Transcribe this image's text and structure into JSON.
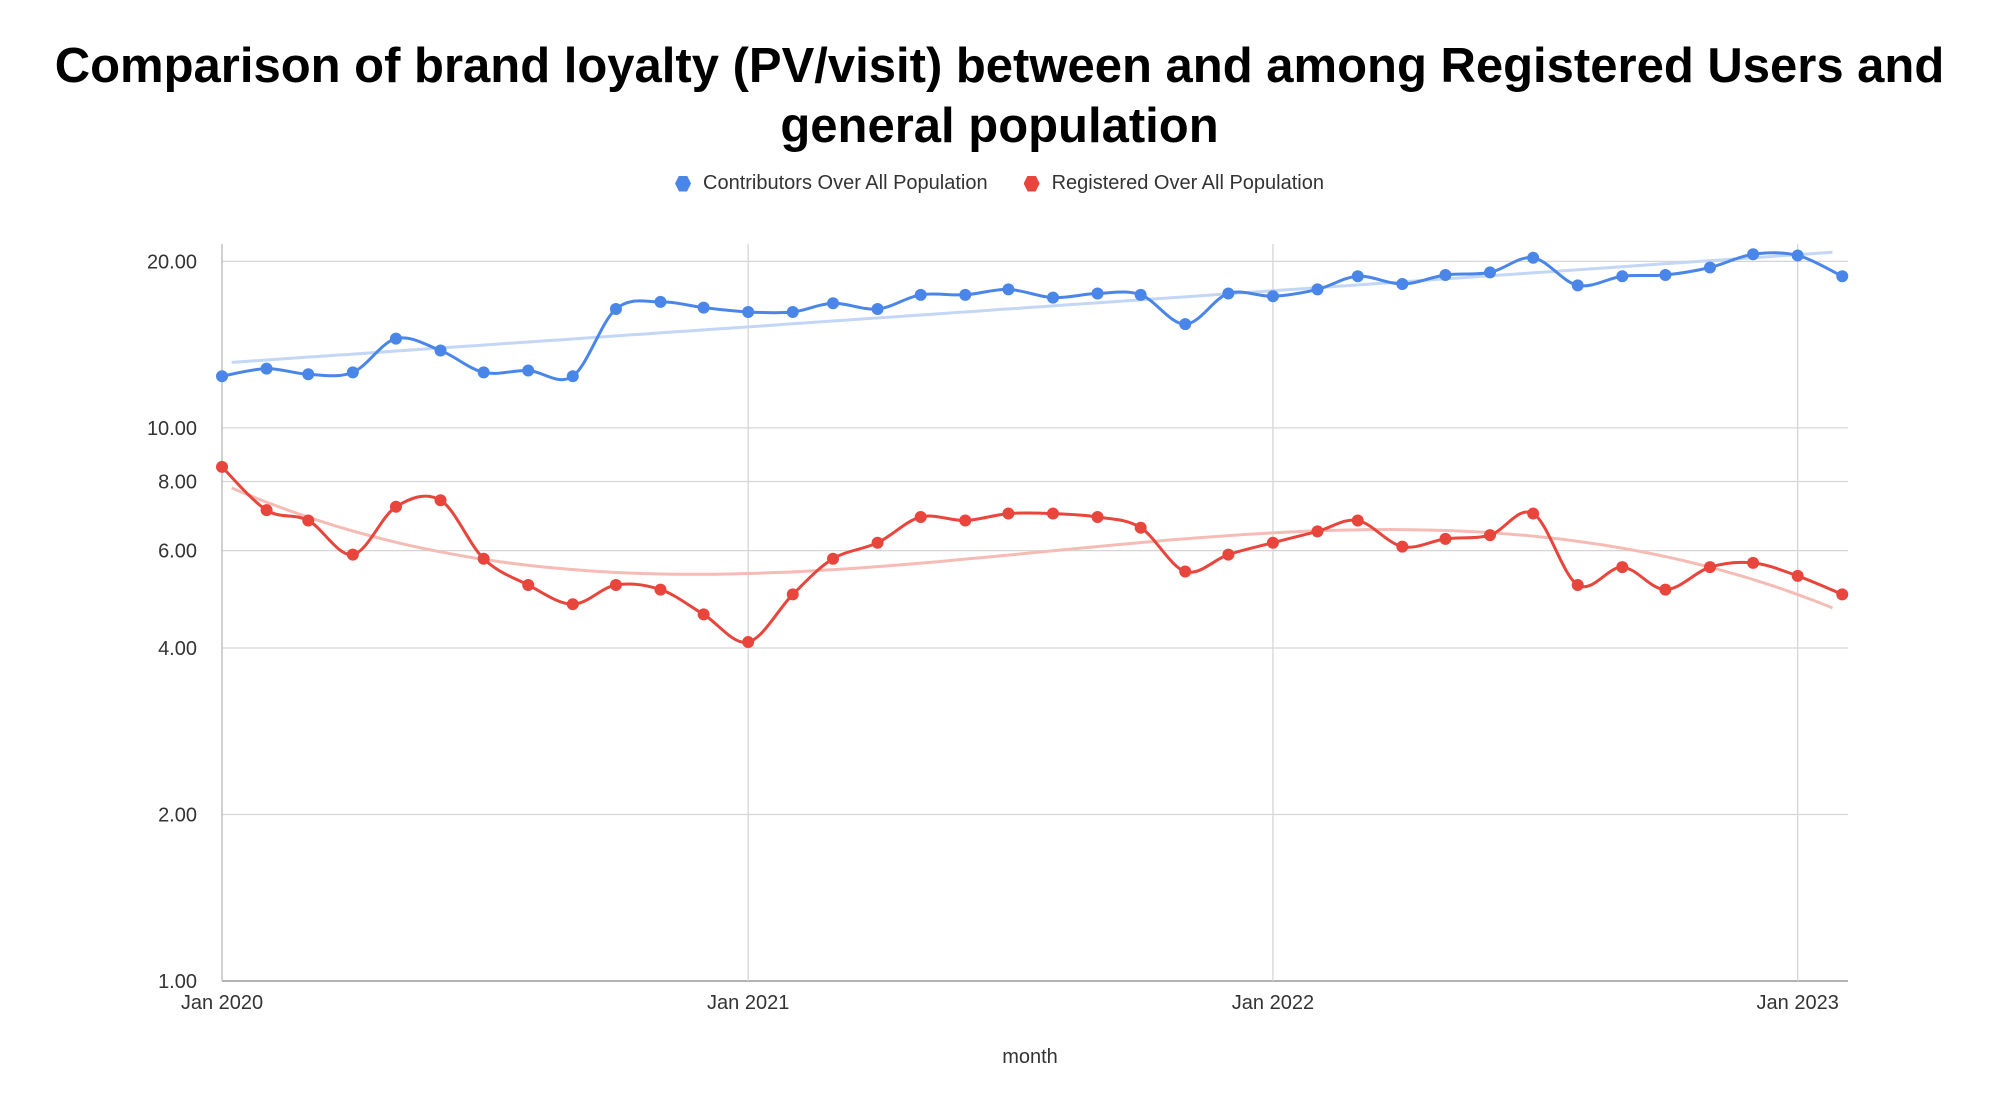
{
  "chart_data": {
    "type": "line",
    "title_lines": [
      "Comparison of brand loyalty (PV/visit) between and among Registered Users and",
      "general population"
    ],
    "xlabel": "month",
    "ylabel": "",
    "y_scale": "log",
    "ylim": [
      1,
      21.5
    ],
    "y_ticks": [
      {
        "value": 1,
        "label": "1.00"
      },
      {
        "value": 2,
        "label": "2.00"
      },
      {
        "value": 4,
        "label": "4.00"
      },
      {
        "value": 6,
        "label": "6.00"
      },
      {
        "value": 8,
        "label": "8.00"
      },
      {
        "value": 10,
        "label": "10.00"
      },
      {
        "value": 20,
        "label": "20.00"
      }
    ],
    "x_ticks": [
      {
        "date": "2020-01-01",
        "label": "Jan 2020"
      },
      {
        "date": "2021-01-01",
        "label": "Jan 2021"
      },
      {
        "date": "2022-01-01",
        "label": "Jan 2022"
      },
      {
        "date": "2023-01-01",
        "label": "Jan 2023"
      }
    ],
    "x_range": [
      "2020-01-01",
      "2023-02-05"
    ],
    "grid": true,
    "legend_position": "top",
    "trendlines": true,
    "categories": [
      "2020-01",
      "2020-02",
      "2020-03",
      "2020-04",
      "2020-05",
      "2020-06",
      "2020-07",
      "2020-08",
      "2020-09",
      "2020-10",
      "2020-11",
      "2020-12",
      "2021-01",
      "2021-02",
      "2021-03",
      "2021-04",
      "2021-05",
      "2021-06",
      "2021-07",
      "2021-08",
      "2021-09",
      "2021-10",
      "2021-11",
      "2021-12",
      "2022-01",
      "2022-02",
      "2022-03",
      "2022-04",
      "2022-05",
      "2022-06",
      "2022-07",
      "2022-08",
      "2022-09",
      "2022-10",
      "2022-11",
      "2022-12",
      "2023-01",
      "2023-02"
    ],
    "series": [
      {
        "name": "Contributors Over All Population",
        "color": "#4a86e8",
        "trend_color": "#c3d6f5",
        "values": [
          12.4,
          12.8,
          12.5,
          12.6,
          14.5,
          13.8,
          12.6,
          12.7,
          12.4,
          16.4,
          16.9,
          16.5,
          16.2,
          16.2,
          16.8,
          16.4,
          17.4,
          17.4,
          17.8,
          17.2,
          17.5,
          17.4,
          15.4,
          17.5,
          17.3,
          17.8,
          18.8,
          18.2,
          18.9,
          19.1,
          20.3,
          18.1,
          18.8,
          18.9,
          19.5,
          20.6,
          20.5,
          18.8
        ]
      },
      {
        "name": "Registered Over All Population",
        "color": "#e8453c",
        "trend_color": "#f5bcb6",
        "values": [
          8.5,
          7.1,
          6.8,
          5.9,
          7.2,
          7.4,
          5.8,
          5.2,
          4.8,
          5.2,
          5.1,
          4.6,
          4.1,
          5.0,
          5.8,
          6.2,
          6.9,
          6.8,
          7.0,
          7.0,
          6.9,
          6.6,
          5.5,
          5.9,
          6.2,
          6.5,
          6.8,
          6.1,
          6.3,
          6.4,
          7.0,
          5.2,
          5.6,
          5.1,
          5.6,
          5.7,
          5.4,
          5.0
        ]
      }
    ]
  }
}
